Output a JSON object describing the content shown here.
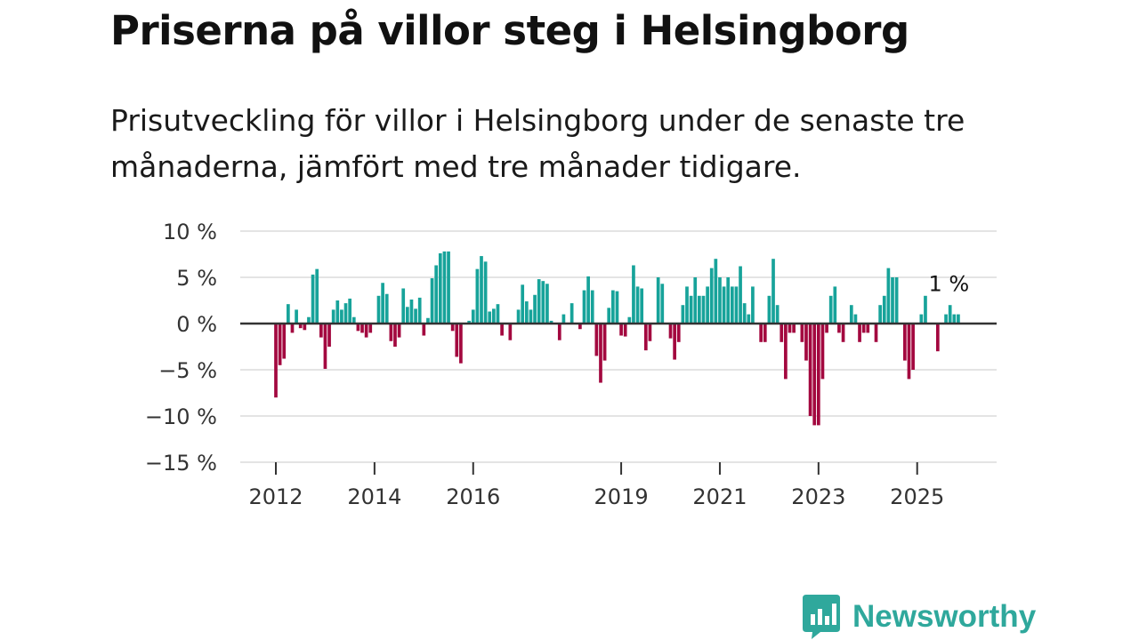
{
  "header": {
    "title": "Priserna på villor steg i Helsingborg",
    "subtitle": "Prisutveckling för villor i Helsingborg under de senaste tre månaderna, jämfört med tre månader tidigare."
  },
  "brand": {
    "name": "Newsworthy",
    "color": "#2fa89c"
  },
  "colors": {
    "positive": "#17a39a",
    "negative": "#a3083f",
    "grid": "#dcdcdc",
    "zero_line": "#333333"
  },
  "chart_data": {
    "type": "bar",
    "title": "Priserna på villor steg i Helsingborg",
    "xlabel": "",
    "ylabel": "",
    "ylim": [
      -15,
      10
    ],
    "grid": true,
    "y_ticks": [
      {
        "value": 10,
        "label": "10 %"
      },
      {
        "value": 5,
        "label": "5 %"
      },
      {
        "value": 0,
        "label": "0 %"
      },
      {
        "value": -5,
        "label": "−5 %"
      },
      {
        "value": -10,
        "label": "−10 %"
      },
      {
        "value": -15,
        "label": "−15 %"
      }
    ],
    "x_ticks": [
      {
        "month_index": 0,
        "label": "2012"
      },
      {
        "month_index": 24,
        "label": "2014"
      },
      {
        "month_index": 48,
        "label": "2016"
      },
      {
        "month_index": 84,
        "label": "2019"
      },
      {
        "month_index": 108,
        "label": "2021"
      },
      {
        "month_index": 132,
        "label": "2023"
      },
      {
        "month_index": 156,
        "label": "2025"
      }
    ],
    "start": "2012-01",
    "annotation": {
      "label": "1 %",
      "month_index": 165,
      "value": 1
    },
    "values": [
      -8,
      -4.5,
      -3.8,
      2.1,
      -1,
      1.5,
      -0.5,
      -0.7,
      0.7,
      5.3,
      5.9,
      -1.5,
      -4.9,
      -2.5,
      1.5,
      2.5,
      1.5,
      2.2,
      2.7,
      0.7,
      -0.8,
      -1,
      -1.5,
      -1,
      0,
      3,
      4.4,
      3.2,
      -1.9,
      -2.5,
      -1.5,
      3.8,
      1.8,
      2.6,
      1.6,
      2.8,
      -1.3,
      0.6,
      4.9,
      6.3,
      7.6,
      7.8,
      7.8,
      -0.8,
      -3.6,
      -4.3,
      0,
      0.3,
      1.5,
      5.9,
      7.3,
      6.7,
      1.3,
      1.6,
      2.1,
      -1.3,
      0,
      -1.8,
      0,
      1.5,
      4.2,
      2.4,
      1.5,
      3.1,
      4.8,
      4.6,
      4.3,
      0.3,
      0,
      -1.8,
      1,
      0.1,
      2.2,
      0,
      -0.6,
      3.6,
      5.1,
      3.6,
      -3.5,
      -6.4,
      -4,
      1.7,
      3.6,
      3.5,
      -1.3,
      -1.4,
      0.7,
      6.3,
      4,
      3.8,
      -2.9,
      -1.9,
      0,
      5,
      4.3,
      0,
      -1.6,
      -3.9,
      -2,
      2,
      4,
      3,
      5,
      3,
      3,
      4,
      6,
      7,
      5,
      4,
      5,
      4,
      4,
      6.2,
      2.2,
      1,
      4,
      0,
      -2,
      -2,
      3,
      7,
      2,
      -2,
      -6,
      -1,
      -1,
      0,
      -2,
      -4,
      -10,
      -11,
      -11,
      -6,
      -1,
      3,
      4,
      -1,
      -2,
      0,
      2,
      1,
      -2,
      -1,
      -1,
      0,
      -2,
      2,
      3,
      6,
      5,
      5,
      0,
      -4,
      -6,
      -5,
      0,
      1,
      3,
      0,
      0,
      -3,
      0,
      1,
      2,
      1,
      1
    ]
  }
}
